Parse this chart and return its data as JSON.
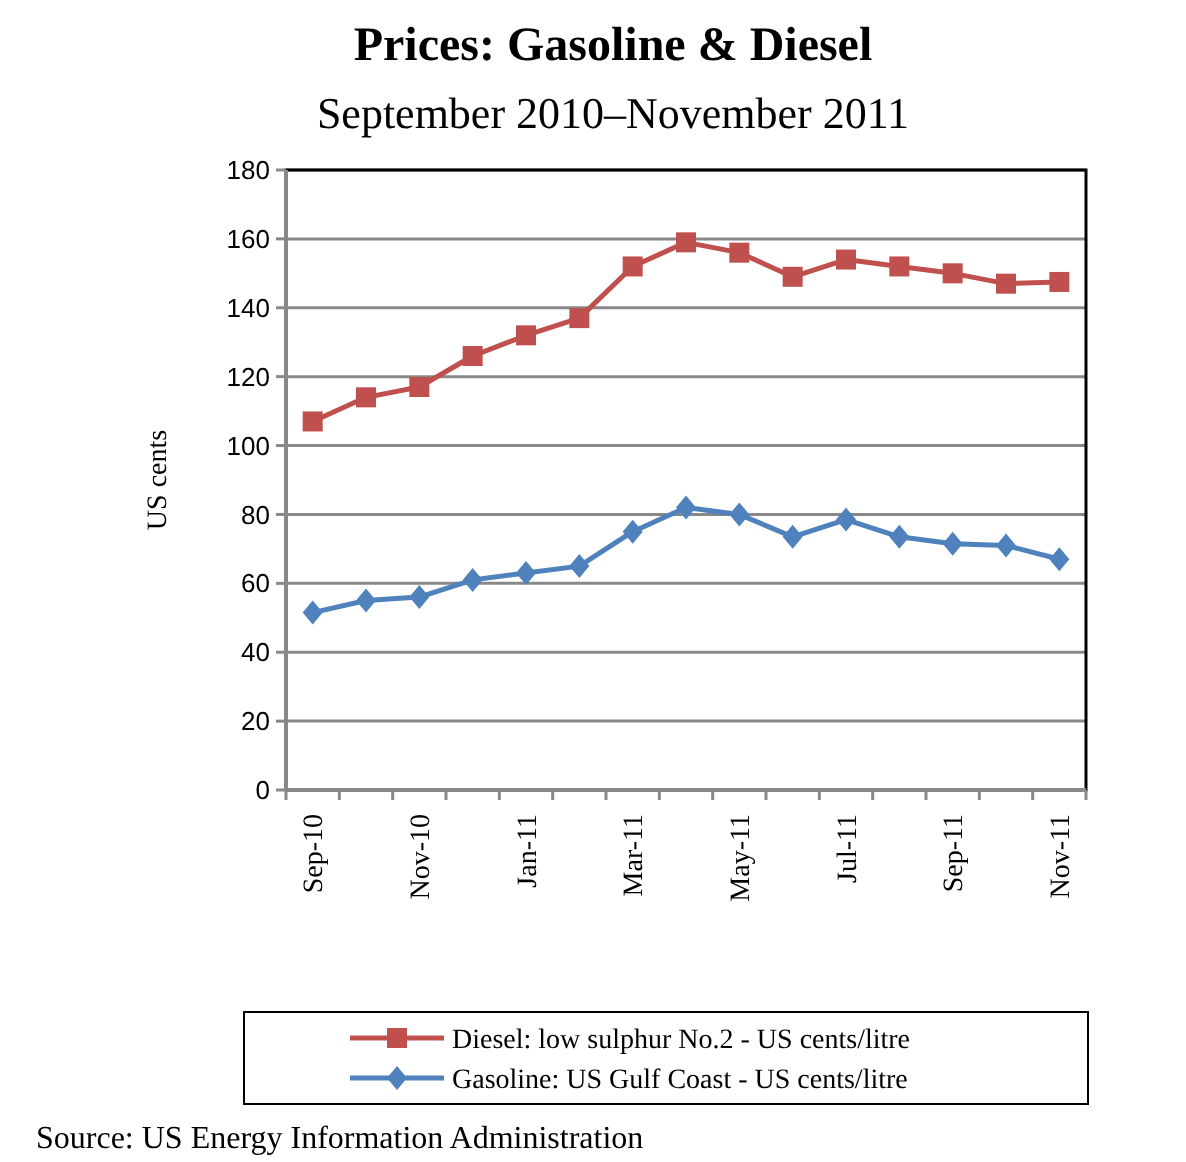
{
  "chart_data": {
    "type": "line",
    "title": "Prices: Gasoline & Diesel",
    "subtitle": "September 2010–November 2011",
    "ylabel": "US cents",
    "categories": [
      "Sep-10",
      null,
      "Nov-10",
      null,
      "Jan-11",
      null,
      "Mar-11",
      null,
      "May-11",
      null,
      "Jul-11",
      null,
      "Sep-11",
      null,
      "Nov-11"
    ],
    "series": [
      {
        "name": "Diesel: low sulphur No.2 - US cents/litre",
        "color": "#c0504d",
        "marker": "square",
        "values": [
          107,
          114,
          117,
          126,
          132,
          137,
          152,
          159,
          156,
          149,
          154,
          152,
          150,
          147,
          147.5
        ]
      },
      {
        "name": "Gasoline: US Gulf Coast - US cents/litre",
        "color": "#4f81bd",
        "marker": "diamond",
        "values": [
          51.5,
          55,
          56,
          61,
          63,
          65,
          75,
          82,
          80,
          73.5,
          78.5,
          73.5,
          71.5,
          71,
          67
        ]
      }
    ],
    "ylim": [
      0,
      180
    ],
    "yticks": [
      0,
      20,
      40,
      60,
      80,
      100,
      120,
      140,
      160,
      180
    ],
    "grid": "y",
    "legend": "bottom",
    "line_style": "solid",
    "annotations": [
      "Source: US Energy Information Administration"
    ]
  }
}
